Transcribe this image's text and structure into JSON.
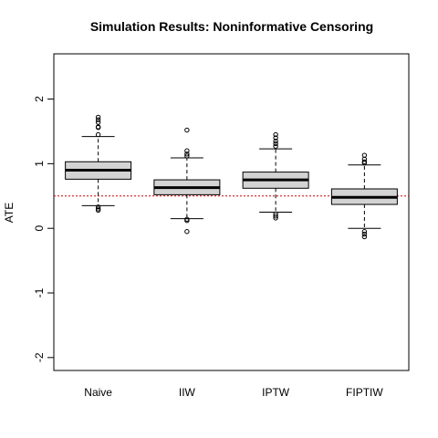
{
  "chart_data": {
    "type": "boxplot",
    "title": "Simulation Results: Noninformative Censoring",
    "xlabel": "",
    "ylabel": "ATE",
    "ylim": [
      -2.2,
      2.7
    ],
    "yticks": [
      -2,
      -1,
      0,
      1,
      2
    ],
    "reference_line": {
      "y": 0.5,
      "style": "dotted",
      "color": "#cc0000"
    },
    "grid": false,
    "legend": "none",
    "box_fill": "#d3d3d3",
    "categories": [
      "Naive",
      "IIW",
      "IPTW",
      "FIPTIW"
    ],
    "boxes": [
      {
        "name": "Naive",
        "whisker_low": 0.35,
        "q1": 0.76,
        "median": 0.9,
        "q3": 1.03,
        "whisker_high": 1.42,
        "outliers": [
          1.72,
          1.68,
          1.64,
          1.57,
          1.56,
          1.45,
          0.33,
          0.3,
          0.28
        ]
      },
      {
        "name": "IIW",
        "whisker_low": 0.15,
        "q1": 0.52,
        "median": 0.63,
        "q3": 0.75,
        "whisker_high": 1.09,
        "outliers": [
          1.52,
          1.2,
          1.15,
          1.12,
          0.14,
          0.12,
          -0.05
        ]
      },
      {
        "name": "IPTW",
        "whisker_low": 0.25,
        "q1": 0.62,
        "median": 0.75,
        "q3": 0.87,
        "whisker_high": 1.23,
        "outliers": [
          1.45,
          1.4,
          1.35,
          1.31,
          1.27,
          0.22,
          0.19,
          0.16
        ]
      },
      {
        "name": "FIPTIW",
        "whisker_low": 0.0,
        "q1": 0.37,
        "median": 0.48,
        "q3": 0.61,
        "whisker_high": 0.98,
        "outliers": [
          1.13,
          1.07,
          1.03,
          1.01,
          -0.05,
          -0.09,
          -0.13
        ]
      }
    ]
  }
}
